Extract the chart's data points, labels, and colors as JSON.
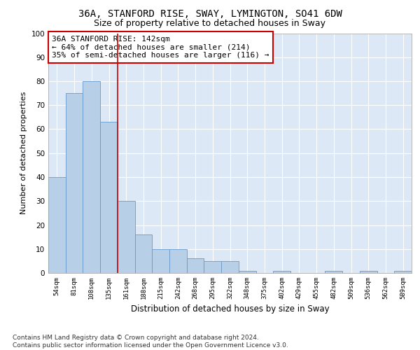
{
  "title1": "36A, STANFORD RISE, SWAY, LYMINGTON, SO41 6DW",
  "title2": "Size of property relative to detached houses in Sway",
  "xlabel": "Distribution of detached houses by size in Sway",
  "ylabel": "Number of detached properties",
  "categories": [
    "54sqm",
    "81sqm",
    "108sqm",
    "135sqm",
    "161sqm",
    "188sqm",
    "215sqm",
    "242sqm",
    "268sqm",
    "295sqm",
    "322sqm",
    "348sqm",
    "375sqm",
    "402sqm",
    "429sqm",
    "455sqm",
    "482sqm",
    "509sqm",
    "536sqm",
    "562sqm",
    "589sqm"
  ],
  "values": [
    40,
    75,
    80,
    63,
    30,
    16,
    10,
    10,
    6,
    5,
    5,
    1,
    0,
    1,
    0,
    0,
    1,
    0,
    1,
    0,
    1
  ],
  "bar_color": "#b8cfe8",
  "bar_edge_color": "#6699cc",
  "vline_x_index": 3.5,
  "vline_color": "#cc0000",
  "annotation_text": "36A STANFORD RISE: 142sqm\n← 64% of detached houses are smaller (214)\n35% of semi-detached houses are larger (116) →",
  "annotation_box_color": "#ffffff",
  "annotation_box_edge_color": "#cc0000",
  "ylim": [
    0,
    100
  ],
  "yticks": [
    0,
    10,
    20,
    30,
    40,
    50,
    60,
    70,
    80,
    90,
    100
  ],
  "plot_bg_color": "#dce8f5",
  "footer": "Contains HM Land Registry data © Crown copyright and database right 2024.\nContains public sector information licensed under the Open Government Licence v3.0.",
  "title1_fontsize": 10,
  "title2_fontsize": 9,
  "xlabel_fontsize": 8.5,
  "ylabel_fontsize": 8,
  "footer_fontsize": 6.5,
  "annot_fontsize": 8
}
